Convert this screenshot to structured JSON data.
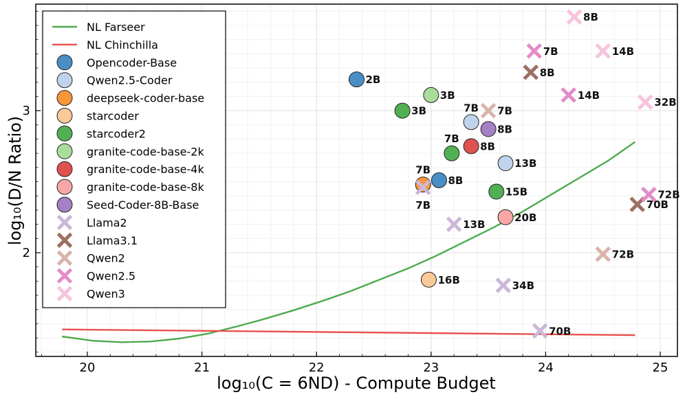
{
  "chart_data": {
    "type": "scatter",
    "xlabel": "log₁₀(C = 6ND) - Compute Budget",
    "ylabel": "log₁₀(D/N Ratio)",
    "xlim": [
      19.55,
      25.15
    ],
    "ylim": [
      1.27,
      3.75
    ],
    "x_ticks": [
      20,
      21,
      22,
      23,
      24,
      25
    ],
    "y_ticks": [
      2,
      3
    ],
    "grid": true,
    "legend_position": "top-left",
    "curves": [
      {
        "name": "NL Farseer",
        "color": "#4daa4d",
        "x": [
          19.78,
          20.05,
          20.3,
          20.55,
          20.8,
          21.05,
          21.3,
          21.55,
          21.8,
          22.05,
          22.3,
          22.55,
          22.8,
          23.05,
          23.3,
          23.55,
          23.8,
          24.05,
          24.3,
          24.55,
          24.78
        ],
        "y": [
          1.41,
          1.38,
          1.37,
          1.375,
          1.395,
          1.43,
          1.48,
          1.535,
          1.595,
          1.66,
          1.73,
          1.81,
          1.89,
          1.98,
          2.08,
          2.18,
          2.29,
          2.41,
          2.53,
          2.65,
          2.78
        ]
      },
      {
        "name": "NL Chinchilla",
        "color": "#e8504d",
        "x": [
          19.78,
          24.78
        ],
        "y": [
          1.46,
          1.42
        ]
      }
    ],
    "series": [
      {
        "name": "Opencoder-Base",
        "marker": "circle",
        "color": "#4a8ec6",
        "points": [
          {
            "x": 22.35,
            "y": 3.22,
            "label": "2B",
            "pos": "right"
          },
          {
            "x": 23.07,
            "y": 2.51,
            "label": "8B",
            "pos": "right"
          }
        ]
      },
      {
        "name": "Qwen2.5-Coder",
        "marker": "circle",
        "color": "#c0d3ec",
        "points": [
          {
            "x": 23.35,
            "y": 2.92,
            "label": "7B",
            "pos": "topleft"
          },
          {
            "x": 23.65,
            "y": 2.63,
            "label": "13B",
            "pos": "right"
          }
        ]
      },
      {
        "name": "deepseek-coder-base",
        "marker": "circle",
        "color": "#f8963a",
        "points": [
          {
            "x": 22.93,
            "y": 2.48,
            "label": "7B",
            "pos": "top"
          }
        ]
      },
      {
        "name": "starcoder",
        "marker": "circle",
        "color": "#f9c998",
        "points": [
          {
            "x": 22.98,
            "y": 1.81,
            "label": "16B",
            "pos": "right"
          }
        ]
      },
      {
        "name": "starcoder2",
        "marker": "circle",
        "color": "#52b054",
        "points": [
          {
            "x": 22.75,
            "y": 3.0,
            "label": "3B",
            "pos": "right"
          },
          {
            "x": 23.18,
            "y": 2.7,
            "label": "7B",
            "pos": "top"
          },
          {
            "x": 23.57,
            "y": 2.43,
            "label": "15B",
            "pos": "right"
          }
        ]
      },
      {
        "name": "granite-code-base-2k",
        "marker": "circle",
        "color": "#a9dd9b",
        "points": [
          {
            "x": 23.0,
            "y": 3.11,
            "label": "3B",
            "pos": "right"
          }
        ]
      },
      {
        "name": "granite-code-base-4k",
        "marker": "circle",
        "color": "#de5250",
        "points": [
          {
            "x": 23.35,
            "y": 2.75,
            "label": "8B",
            "pos": "right"
          }
        ]
      },
      {
        "name": "granite-code-base-8k",
        "marker": "circle",
        "color": "#f7a8a6",
        "points": [
          {
            "x": 23.65,
            "y": 2.25,
            "label": "20B",
            "pos": "right"
          }
        ]
      },
      {
        "name": "Seed-Coder-8B-Base",
        "marker": "circle",
        "color": "#a580c5",
        "points": [
          {
            "x": 23.5,
            "y": 2.87,
            "label": "8B",
            "pos": "right"
          }
        ]
      },
      {
        "name": "Llama2",
        "marker": "cross",
        "color": "#cbb8d9",
        "points": [
          {
            "x": 22.93,
            "y": 2.46,
            "label": "7B",
            "pos": "bottom"
          },
          {
            "x": 23.2,
            "y": 2.2,
            "label": "13B",
            "pos": "right"
          },
          {
            "x": 23.63,
            "y": 1.77,
            "label": "34B",
            "pos": "right"
          },
          {
            "x": 23.95,
            "y": 1.45,
            "label": "70B",
            "pos": "right"
          }
        ]
      },
      {
        "name": "Llama3.1",
        "marker": "cross",
        "color": "#9b6f62",
        "points": [
          {
            "x": 23.87,
            "y": 3.27,
            "label": "8B",
            "pos": "right"
          },
          {
            "x": 24.8,
            "y": 2.34,
            "label": "70B",
            "pos": "right"
          }
        ]
      },
      {
        "name": "Qwen2",
        "marker": "cross",
        "color": "#d9b3ac",
        "points": [
          {
            "x": 23.5,
            "y": 3.0,
            "label": "7B",
            "pos": "right"
          },
          {
            "x": 24.5,
            "y": 1.99,
            "label": "72B",
            "pos": "right"
          }
        ]
      },
      {
        "name": "Qwen2.5",
        "marker": "cross",
        "color": "#e48cca",
        "points": [
          {
            "x": 23.9,
            "y": 3.42,
            "label": "7B",
            "pos": "right"
          },
          {
            "x": 24.2,
            "y": 3.11,
            "label": "14B",
            "pos": "right"
          },
          {
            "x": 24.9,
            "y": 2.41,
            "label": "72B",
            "pos": "right"
          }
        ]
      },
      {
        "name": "Qwen3",
        "marker": "cross",
        "color": "#f6c4dd",
        "points": [
          {
            "x": 24.25,
            "y": 3.66,
            "label": "8B",
            "pos": "right"
          },
          {
            "x": 24.5,
            "y": 3.42,
            "label": "14B",
            "pos": "right"
          },
          {
            "x": 24.87,
            "y": 3.06,
            "label": "32B",
            "pos": "right"
          }
        ]
      }
    ]
  }
}
